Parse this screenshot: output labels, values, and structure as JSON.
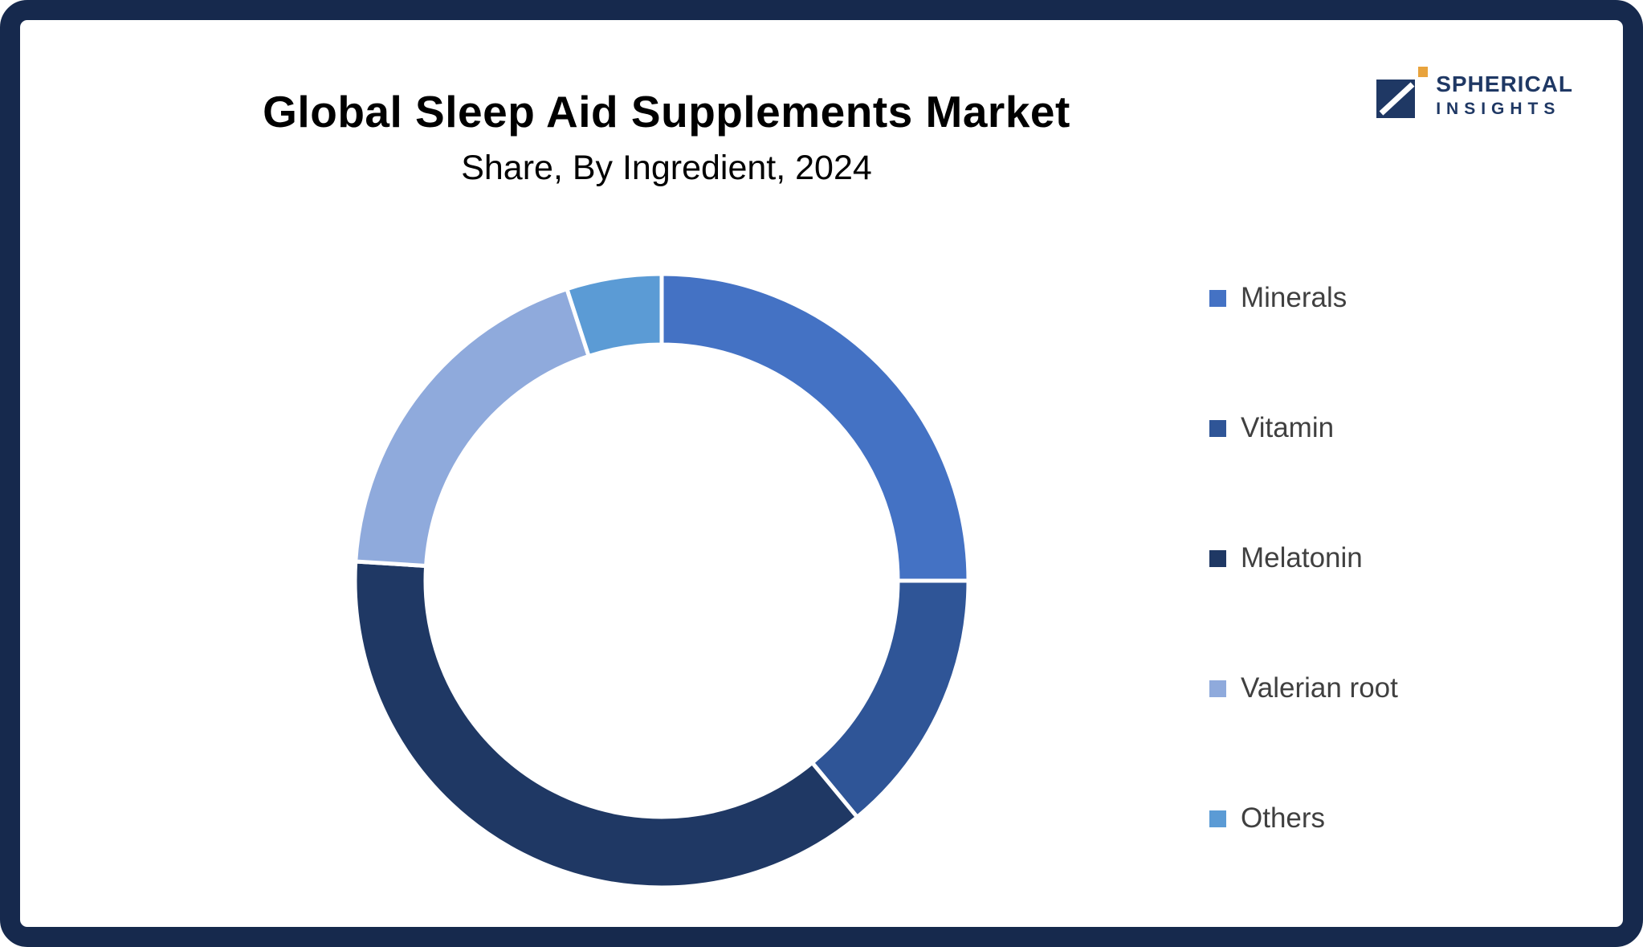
{
  "branding": {
    "name_top": "SPHERICAL",
    "name_bottom": "INSIGHTS"
  },
  "frame": {
    "border_color": "#16294D",
    "background": "#ffffff"
  },
  "chart_data": {
    "type": "pie",
    "variant": "donut",
    "title": "Global Sleep Aid Supplements Market",
    "subtitle": "Share, By Ingredient, 2024",
    "legend_position": "right",
    "start_angle_deg": 0,
    "direction": "clockwise",
    "inner_radius_ratio": 0.77,
    "gap_color": "#ffffff",
    "series": [
      {
        "label": "Minerals",
        "value": 25,
        "color": "#4472C4"
      },
      {
        "label": "Vitamin",
        "value": 14,
        "color": "#2F5597"
      },
      {
        "label": "Melatonin",
        "value": 37,
        "color": "#1F3864"
      },
      {
        "label": "Valerian root",
        "value": 19,
        "color": "#8FAADC"
      },
      {
        "label": "Others",
        "value": 5,
        "color": "#5B9BD5"
      }
    ]
  }
}
